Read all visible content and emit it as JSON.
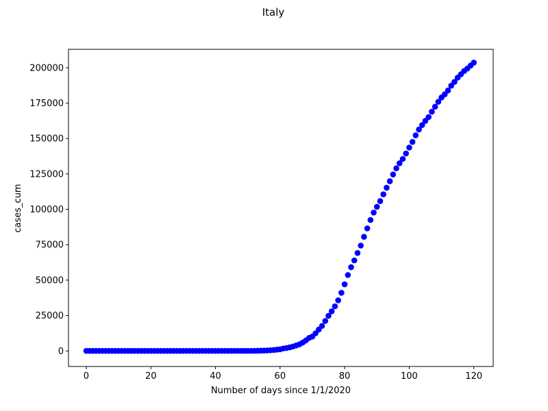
{
  "chart_data": {
    "type": "scatter",
    "title": "Italy",
    "xlabel": "Number of days since 1/1/2020",
    "ylabel": "cases_cum",
    "xlim": [
      -5.5,
      126
    ],
    "ylim": [
      -11000,
      213000
    ],
    "xticks": [
      0,
      20,
      40,
      60,
      80,
      100,
      120
    ],
    "yticks": [
      0,
      25000,
      50000,
      75000,
      100000,
      125000,
      150000,
      175000,
      200000
    ],
    "xtick_labels": [
      "0",
      "20",
      "40",
      "60",
      "80",
      "100",
      "120"
    ],
    "ytick_labels": [
      "0",
      "25000",
      "50000",
      "75000",
      "100000",
      "125000",
      "150000",
      "175000",
      "200000"
    ],
    "marker_color": "#0000ff",
    "grid": false,
    "series": [
      {
        "x": [
          0,
          1,
          2,
          3,
          4,
          5,
          6,
          7,
          8,
          9,
          10,
          11,
          12,
          13,
          14,
          15,
          16,
          17,
          18,
          19,
          20,
          21,
          22,
          23,
          24,
          25,
          26,
          27,
          28,
          29,
          30,
          31,
          32,
          33,
          34,
          35,
          36,
          37,
          38,
          39,
          40,
          41,
          42,
          43,
          44,
          45,
          46,
          47,
          48,
          49,
          50,
          51,
          52,
          53,
          54,
          55,
          56,
          57,
          58,
          59,
          60,
          61,
          62,
          63,
          64,
          65,
          66,
          67,
          68,
          69,
          70,
          71,
          72,
          73,
          74,
          75,
          76,
          77,
          78,
          79,
          80,
          81,
          82,
          83,
          84,
          85,
          86,
          87,
          88,
          89,
          90,
          91,
          92,
          93,
          94,
          95,
          96,
          97,
          98,
          99,
          100,
          101,
          102,
          103,
          104,
          105,
          106,
          107,
          108,
          109,
          110,
          111,
          112,
          113,
          114,
          115,
          116,
          117,
          118,
          119,
          120
        ],
        "y": [
          0,
          0,
          0,
          0,
          0,
          0,
          0,
          0,
          0,
          0,
          0,
          0,
          0,
          0,
          0,
          0,
          0,
          0,
          0,
          0,
          0,
          0,
          0,
          0,
          0,
          0,
          0,
          0,
          0,
          0,
          2,
          2,
          2,
          2,
          2,
          2,
          2,
          2,
          3,
          3,
          3,
          3,
          3,
          3,
          3,
          3,
          3,
          3,
          3,
          3,
          3,
          3,
          17,
          79,
          150,
          227,
          320,
          445,
          650,
          888,
          1128,
          1694,
          2036,
          2502,
          3089,
          3858,
          4636,
          5883,
          7375,
          9172,
          10149,
          12462,
          15113,
          17660,
          21157,
          24747,
          27980,
          31506,
          35713,
          41035,
          47021,
          53578,
          59138,
          63927,
          69176,
          74386,
          80589,
          86498,
          92472,
          97689,
          101739,
          105792,
          110574,
          115242,
          119827,
          124632,
          128948,
          132547,
          135586,
          139422,
          143626,
          147577,
          152271,
          156363,
          159516,
          162488,
          165155,
          168941,
          172434,
          175925,
          178972,
          181228,
          183957,
          187327,
          189973,
          192994,
          195351,
          197675,
          199414,
          201505,
          203591
        ]
      }
    ]
  }
}
